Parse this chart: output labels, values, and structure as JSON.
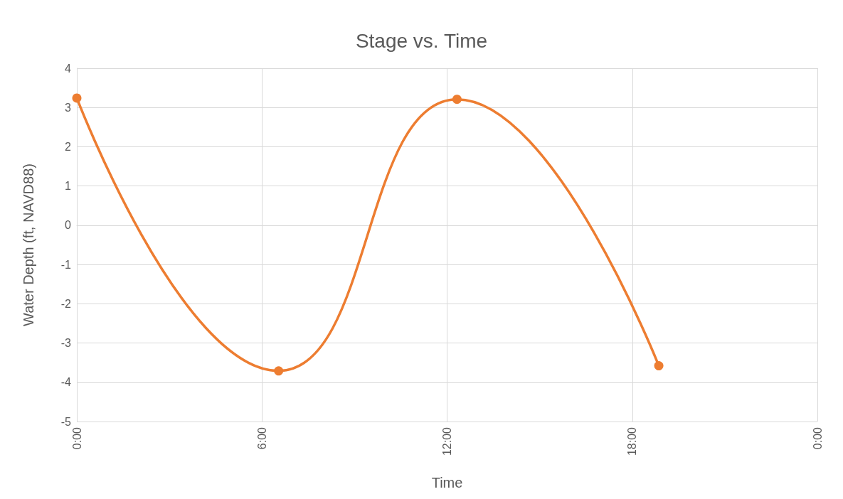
{
  "chart_data": {
    "type": "line",
    "title": "Stage vs. Time",
    "xlabel": "Time",
    "ylabel": "Water Depth (ft, NAVD88)",
    "x": [
      0,
      6.54,
      12.32,
      18.86
    ],
    "series": [
      {
        "color": "#ed7d31",
        "values": [
          3.24,
          -3.71,
          3.21,
          -3.58
        ]
      }
    ],
    "xlim": [
      0,
      24
    ],
    "xticks": [
      {
        "value": 0,
        "label": "0:00"
      },
      {
        "value": 6,
        "label": "6:00"
      },
      {
        "value": 12,
        "label": "12:00"
      },
      {
        "value": 18,
        "label": "18:00"
      },
      {
        "value": 24,
        "label": "0:00"
      }
    ],
    "ylim": [
      -5,
      4
    ],
    "yticks": [
      -5,
      -4,
      -3,
      -2,
      -1,
      0,
      1,
      2,
      3,
      4
    ],
    "grid": true,
    "marker": "circle",
    "line_style": "solid"
  }
}
